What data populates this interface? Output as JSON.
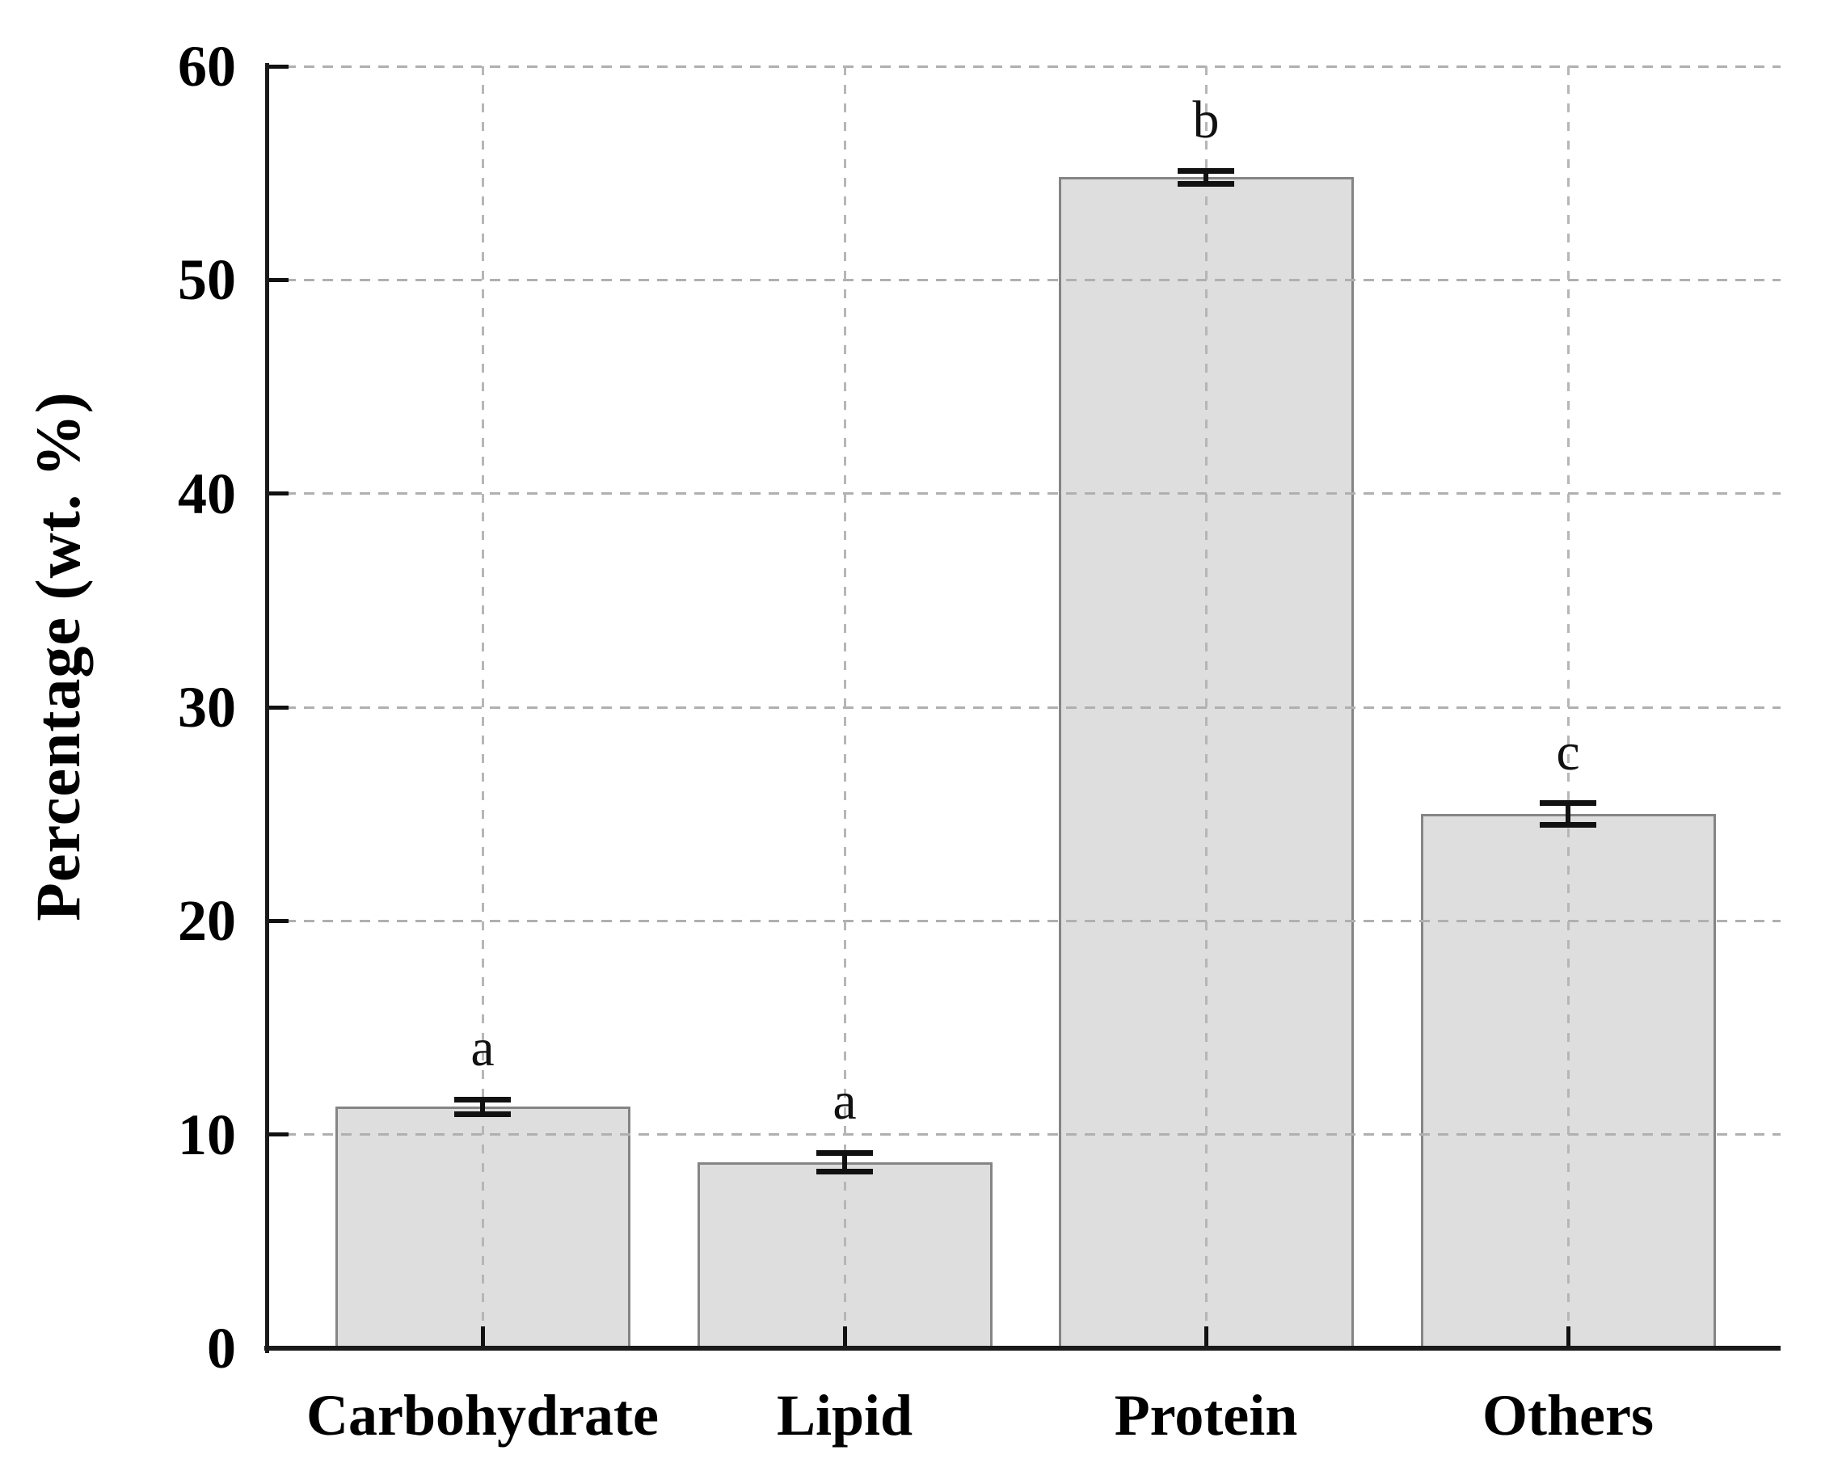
{
  "chart_data": {
    "type": "bar",
    "title": "",
    "ylabel": "Percentage (wt. %)",
    "xlabel": "",
    "categories": [
      "Carbohydrate",
      "Lipid",
      "Protein",
      "Others"
    ],
    "values": [
      11.3,
      8.7,
      54.8,
      25.0
    ],
    "errors": [
      0.35,
      0.45,
      0.3,
      0.5
    ],
    "sig_letters": [
      "a",
      "a",
      "b",
      "c"
    ],
    "ylim": [
      0,
      60
    ],
    "yticks": [
      0,
      10,
      20,
      30,
      40,
      50,
      60
    ],
    "grid": {
      "horizontal": "dashed",
      "vertical": "dashed-at-bar-centers"
    },
    "legend": "none",
    "colors": {
      "bar_fill": "#dedede",
      "bar_border": "#858585",
      "grid": "#b0b0b0",
      "axis": "#1a1a1a",
      "text": "#000000",
      "background": "#ffffff"
    }
  }
}
